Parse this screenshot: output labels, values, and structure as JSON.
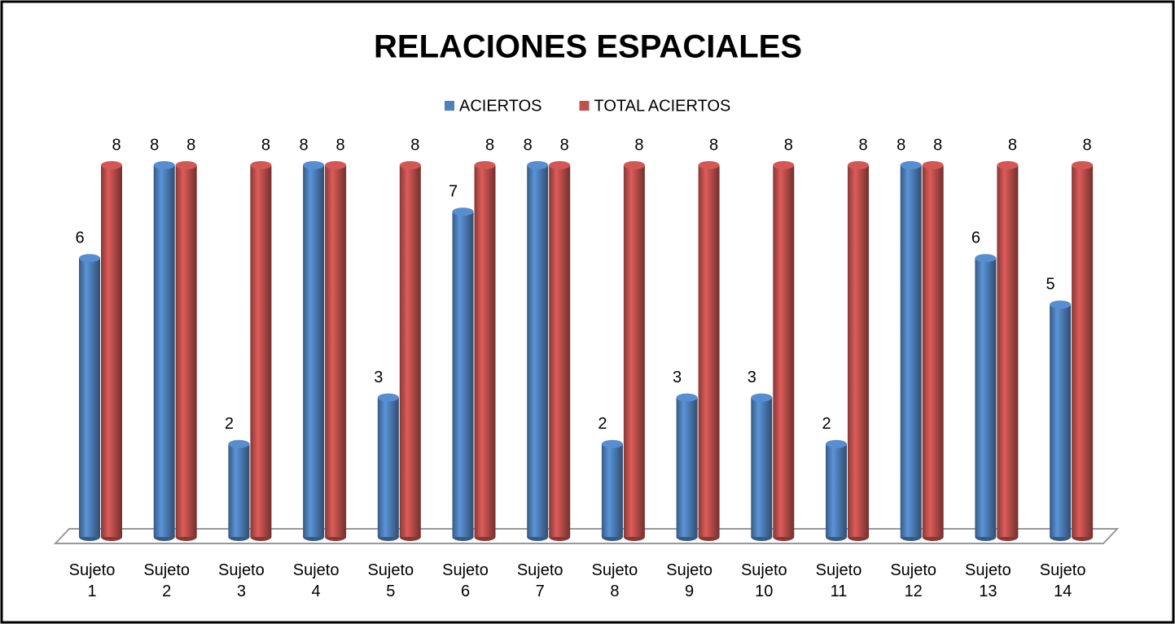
{
  "chart_data": {
    "type": "bar",
    "title": "RELACIONES ESPACIALES",
    "categories": [
      "Sujeto 1",
      "Sujeto 2",
      "Sujeto 3",
      "Sujeto 4",
      "Sujeto 5",
      "Sujeto 6",
      "Sujeto 7",
      "Sujeto 8",
      "Sujeto 9",
      "Sujeto 10",
      "Sujeto 11",
      "Sujeto 12",
      "Sujeto 13",
      "Sujeto 14"
    ],
    "series": [
      {
        "name": "ACIERTOS",
        "color": "#4f81bd",
        "values": [
          6,
          8,
          2,
          8,
          3,
          7,
          8,
          2,
          3,
          3,
          2,
          8,
          6,
          5
        ]
      },
      {
        "name": "TOTAL ACIERTOS",
        "color": "#c0504d",
        "values": [
          8,
          8,
          8,
          8,
          8,
          8,
          8,
          8,
          8,
          8,
          8,
          8,
          8,
          8
        ]
      }
    ],
    "legend": "top"
  }
}
